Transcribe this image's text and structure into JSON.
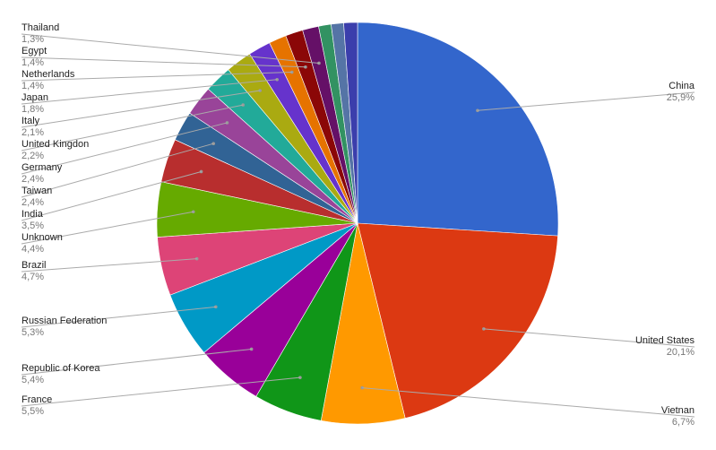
{
  "chart_data": {
    "type": "pie",
    "title": "",
    "start_angle_deg": 0,
    "direction": "clockwise",
    "slices": [
      {
        "label": "China",
        "value": 25.9,
        "display": "25,9%",
        "color": "#3366cc",
        "side": "right"
      },
      {
        "label": "United States",
        "value": 20.1,
        "display": "20,1%",
        "color": "#dc3912",
        "side": "right"
      },
      {
        "label": "Vietnan",
        "value": 6.7,
        "display": "6,7%",
        "color": "#ff9900",
        "side": "right"
      },
      {
        "label": "France",
        "value": 5.5,
        "display": "5,5%",
        "color": "#109618",
        "side": "left"
      },
      {
        "label": "Republic of Korea",
        "value": 5.4,
        "display": "5,4%",
        "color": "#990099",
        "side": "left"
      },
      {
        "label": "Russian Federation",
        "value": 5.3,
        "display": "5,3%",
        "color": "#0099c6",
        "side": "left"
      },
      {
        "label": "Brazil",
        "value": 4.7,
        "display": "4,7%",
        "color": "#dd4477",
        "side": "left"
      },
      {
        "label": "Unknown",
        "value": 4.4,
        "display": "4,4%",
        "color": "#66aa00",
        "side": "left"
      },
      {
        "label": "India",
        "value": 3.5,
        "display": "3,5%",
        "color": "#b82e2e",
        "side": "left"
      },
      {
        "label": "Taiwan",
        "value": 2.4,
        "display": "2,4%",
        "color": "#316395",
        "side": "left"
      },
      {
        "label": "Germany",
        "value": 2.4,
        "display": "2,4%",
        "color": "#994499",
        "side": "left"
      },
      {
        "label": "United Kingdon",
        "value": 2.2,
        "display": "2,2%",
        "color": "#22aa99",
        "side": "left"
      },
      {
        "label": "Italy",
        "value": 2.1,
        "display": "2,1%",
        "color": "#aaaa11",
        "side": "left"
      },
      {
        "label": "Japan",
        "value": 1.8,
        "display": "1,8%",
        "color": "#6633cc",
        "side": "left"
      },
      {
        "label": "Netherlands",
        "value": 1.4,
        "display": "1,4%",
        "color": "#e67300",
        "side": "left"
      },
      {
        "label": "Egypt",
        "value": 1.4,
        "display": "1,4%",
        "color": "#8b0707",
        "side": "left"
      },
      {
        "label": "Thailand",
        "value": 1.3,
        "display": "1,3%",
        "color": "#651067",
        "side": "left"
      },
      {
        "label": "",
        "value": 1.0,
        "display": "",
        "color": "#329262",
        "side": "none"
      },
      {
        "label": "",
        "value": 1.0,
        "display": "",
        "color": "#5574a6",
        "side": "none"
      },
      {
        "label": "",
        "value": 1.1,
        "display": "",
        "color": "#3b3eac",
        "side": "none"
      }
    ]
  }
}
